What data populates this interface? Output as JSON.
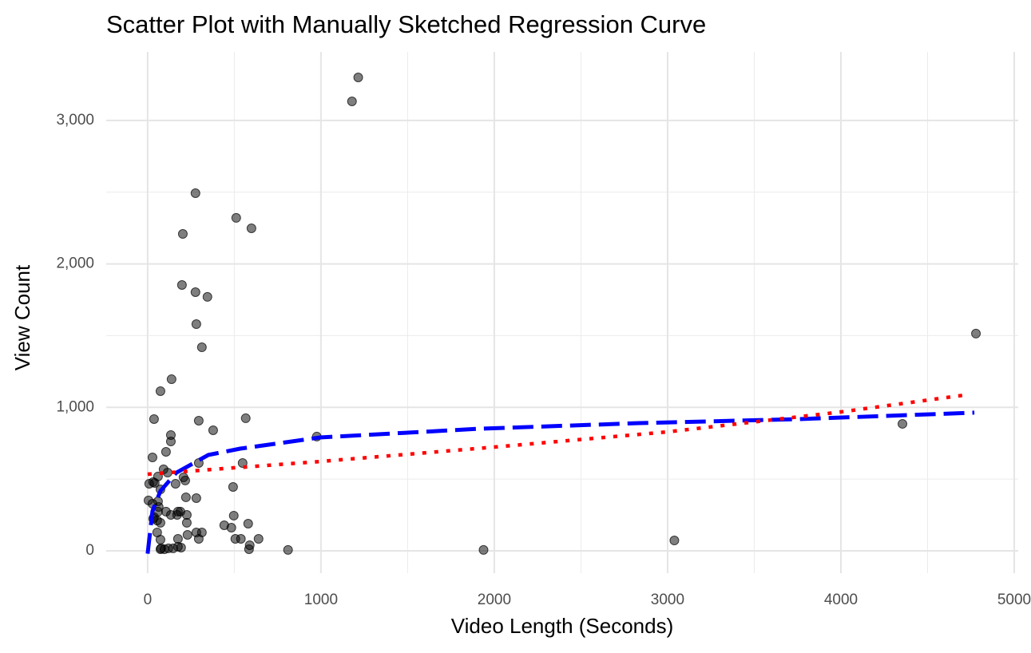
{
  "chart_data": {
    "type": "scatter",
    "title": "Scatter Plot with Manually Sketched Regression Curve",
    "x_label": "Video Length (Seconds)",
    "y_label": "View Count",
    "xlim": [
      -239,
      5023
    ],
    "ylim": [
      -156,
      3478
    ],
    "xticks": [
      0,
      1000,
      2000,
      3000,
      4000,
      5000
    ],
    "x_minor_ticks": [
      500,
      1500,
      2500,
      3500,
      4500
    ],
    "yticks": [
      0,
      {
        "value": 1000,
        "label": "1,000"
      },
      {
        "value": 2000,
        "label": "2,000"
      },
      {
        "value": 3000,
        "label": "3,000"
      }
    ],
    "y_minor_ticks": [
      500,
      1500,
      2500
    ],
    "grid": true,
    "points": {
      "color": "#000000",
      "opacity": 0.5,
      "x": [
        1215,
        1179,
        276,
        511,
        599,
        203,
        198,
        276,
        345,
        281,
        313,
        138,
        74,
        37,
        295,
        566,
        378,
        976,
        134,
        134,
        28,
        106,
        92,
        115,
        295,
        548,
        207,
        217,
        60,
        9,
        41,
        161,
        32,
        493,
        74,
        221,
        281,
        5,
        60,
        28,
        64,
        106,
        134,
        170,
        37,
        55,
        74,
        226,
        226,
        32,
        60,
        497,
        580,
        442,
        483,
        55,
        230,
        313,
        281,
        74,
        175,
        506,
        538,
        640,
        295,
        120,
        74,
        175,
        193,
        97,
        589,
        585,
        810,
        1938,
        3039,
        4355,
        4779,
        147,
        78,
        175,
        189
      ],
      "y": [
        3300,
        3133,
        2493,
        2321,
        2248,
        2209,
        1853,
        1803,
        1770,
        1580,
        1419,
        1196,
        1113,
        918,
        907,
        924,
        840,
        796,
        807,
        762,
        651,
        690,
        568,
        545,
        612,
        612,
        512,
        490,
        518,
        467,
        473,
        467,
        479,
        445,
        428,
        373,
        367,
        351,
        345,
        328,
        306,
        273,
        250,
        250,
        234,
        211,
        195,
        250,
        195,
        223,
        273,
        245,
        189,
        178,
        161,
        128,
        111,
        128,
        128,
        78,
        83,
        83,
        83,
        83,
        83,
        17,
        11,
        28,
        22,
        11,
        39,
        11,
        6,
        6,
        72,
        885,
        1514,
        17,
        17,
        273,
        273
      ]
    },
    "curves": [
      {
        "color": "#0000ff",
        "style": "dashed",
        "x": [
          0,
          28,
          74,
          166,
          350,
          534,
          994,
          1915,
          2836,
          3757,
          4770
        ],
        "y": [
          -20,
          278,
          417,
          545,
          668,
          712,
          790,
          851,
          890,
          918,
          963
        ]
      },
      {
        "color": "#ff0000",
        "style": "dotted",
        "x": [
          0,
          1000,
          2000,
          3000,
          4000,
          4740
        ],
        "y": [
          534,
          623,
          723,
          829,
          968,
          1090
        ]
      }
    ]
  }
}
